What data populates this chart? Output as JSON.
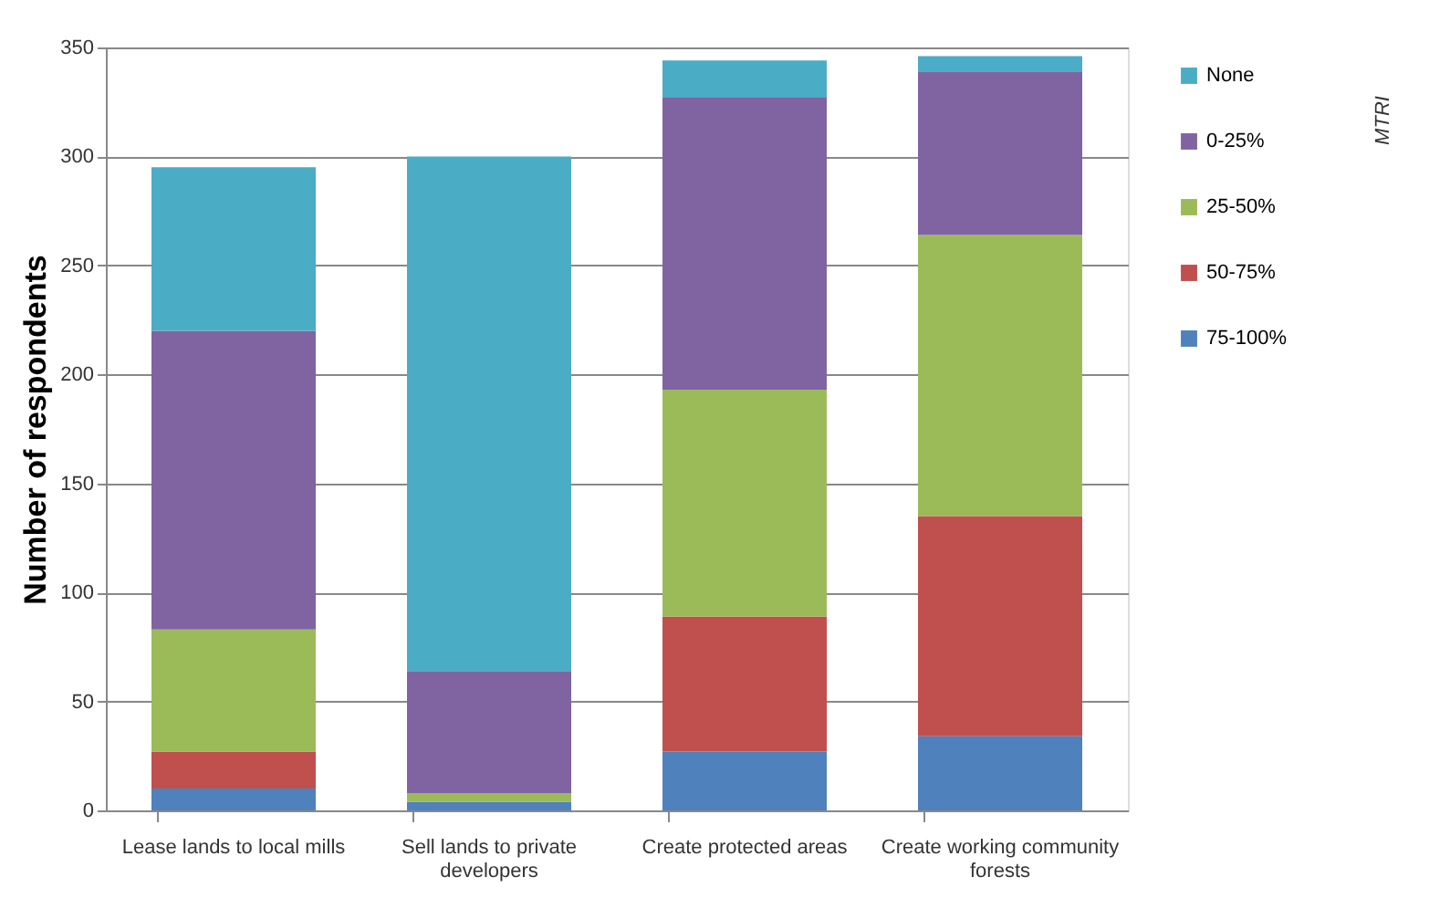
{
  "chart_data": {
    "type": "bar",
    "stacked": true,
    "ylabel": "Number of respondents",
    "categories": [
      "Lease lands to local mills",
      "Sell lands to private developers",
      "Create protected areas",
      "Create working community forests"
    ],
    "series": [
      {
        "name": "75-100%",
        "color": "#4f81bd",
        "values": [
          10,
          4,
          27,
          34
        ]
      },
      {
        "name": "50-75%",
        "color": "#c0504d",
        "values": [
          17,
          0,
          62,
          101
        ]
      },
      {
        "name": "25-50%",
        "color": "#9bbb59",
        "values": [
          56,
          4,
          104,
          129
        ]
      },
      {
        "name": "0-25%",
        "color": "#8064a2",
        "values": [
          137,
          56,
          134,
          75
        ]
      },
      {
        "name": "None",
        "color": "#4bacc6",
        "values": [
          75,
          236,
          17,
          7
        ]
      }
    ],
    "ylim": [
      0,
      350
    ],
    "yticks": [
      0,
      50,
      100,
      150,
      200,
      250,
      300,
      350
    ],
    "grid": "y",
    "legend": "right",
    "annotations": [
      "MTRI"
    ]
  }
}
